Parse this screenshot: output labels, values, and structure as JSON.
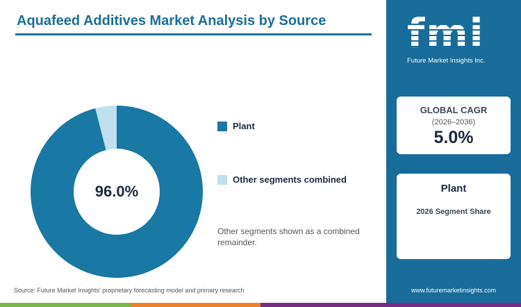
{
  "title": "Aquafeed Additives Market Analysis by Source",
  "chart_data": {
    "type": "pie",
    "categories": [
      "Plant",
      "Other segments combined"
    ],
    "values": [
      96.0,
      4.0
    ],
    "colors": [
      "#1a78a4",
      "#bfe0ec"
    ],
    "center_label": "96.0%",
    "legend_position": "right"
  },
  "legend": [
    {
      "label": "Plant",
      "color": "#1a78a4"
    },
    {
      "label": "Other segments combined",
      "color": "#bfe0ec"
    }
  ],
  "note": "Other segments shown as a combined remainder.",
  "source": "Source: Future Market Insights' proprietary forecasting model and primary research",
  "sidebar": {
    "logo": {
      "letters": "fmi",
      "subtitle": "Future Market Insights Inc."
    },
    "cagr": {
      "title": "GLOBAL CAGR",
      "years": "(2026–2036)",
      "value": "5.0%"
    },
    "segment": {
      "title": "Plant",
      "subtitle": "2026 Segment Share"
    },
    "website": "www.futuremarketinsights.com"
  },
  "bottom_bar_colors": [
    "#7ab648",
    "#f07f2a",
    "#7a2d84",
    "#7a2d84"
  ],
  "colors": {
    "accent": "#1a6f99",
    "sidebar": "#186c9a"
  }
}
